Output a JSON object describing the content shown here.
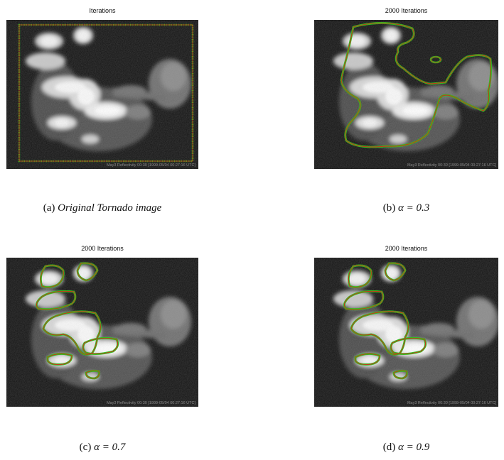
{
  "panels": [
    {
      "title": "Iterations",
      "watermark": "May3 Reflectivity 00:30 [1999-05/04 00:27:16 UTC]",
      "caption_label": "(a)",
      "caption_text": "Original Tornado image",
      "caption_math": ""
    },
    {
      "title": "2000 Iterations",
      "watermark": "May3 Reflectivity 00:30 [1999-05/04 00:27:16 UTC]",
      "caption_label": "(b)",
      "caption_text": "",
      "caption_math": "α = 0.3"
    },
    {
      "title": "2000 Iterations",
      "watermark": "May3 Reflectivity 00:30 [1999-05/04 00:27:16 UTC]",
      "caption_label": "(c)",
      "caption_text": "",
      "caption_math": "α = 0.7"
    },
    {
      "title": "2000 Iterations",
      "watermark": "May3 Reflectivity 00:30 [1999-05/04 00:27:16 UTC]",
      "caption_label": "(d)",
      "caption_text": "",
      "caption_math": "α = 0.9"
    }
  ],
  "colors": {
    "background": "#111111",
    "contour_outer": "#2fbf1f",
    "contour_inner": "#d42a1a"
  }
}
